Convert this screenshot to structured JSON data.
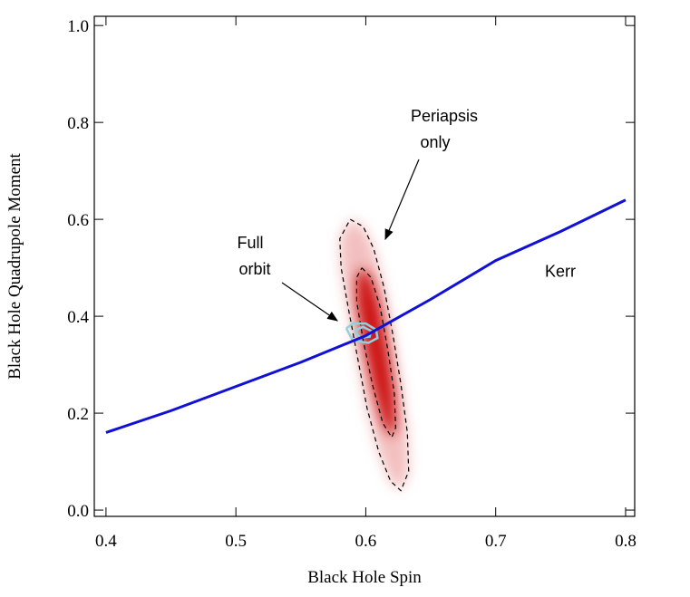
{
  "chart_data": {
    "type": "line",
    "xlabel": "Black Hole Spin",
    "ylabel": "Black Hole Quadrupole Moment",
    "xlim": [
      0.391,
      0.807
    ],
    "ylim": [
      -0.013,
      1.019
    ],
    "xticks": [
      0.4,
      0.5,
      0.6,
      0.7,
      0.8
    ],
    "yticks": [
      {
        "value": 0,
        "label": "0.0"
      },
      0.2,
      0.4,
      0.6,
      0.8,
      {
        "value": 1,
        "label": "1.0"
      }
    ],
    "series": [
      {
        "name": "Kerr",
        "color": "#1010d8",
        "x": [
          0.4,
          0.45,
          0.5,
          0.55,
          0.6,
          0.65,
          0.7,
          0.75,
          0.8
        ],
        "values": [
          0.16,
          0.205,
          0.255,
          0.305,
          0.36,
          0.435,
          0.515,
          0.575,
          0.64
        ]
      }
    ],
    "contours": [
      {
        "style": "dashed",
        "color": "#000000",
        "fill": "#f2b8b8",
        "x": [
          0.588,
          0.598,
          0.606,
          0.614,
          0.621,
          0.627,
          0.632,
          0.633,
          0.627,
          0.619,
          0.61,
          0.601,
          0.594,
          0.587,
          0.581,
          0.58,
          0.588
        ],
        "y": [
          0.6,
          0.585,
          0.54,
          0.46,
          0.36,
          0.26,
          0.16,
          0.08,
          0.04,
          0.06,
          0.12,
          0.21,
          0.31,
          0.41,
          0.5,
          0.56,
          0.6
        ]
      },
      {
        "style": "dashed",
        "color": "#000000",
        "fill": "#c80000",
        "x": [
          0.597,
          0.604,
          0.611,
          0.617,
          0.622,
          0.623,
          0.62,
          0.613,
          0.605,
          0.598,
          0.593,
          0.593,
          0.597
        ],
        "y": [
          0.5,
          0.48,
          0.42,
          0.33,
          0.24,
          0.17,
          0.15,
          0.18,
          0.26,
          0.35,
          0.43,
          0.48,
          0.5
        ]
      },
      {
        "style": "solid",
        "color": "#8fd3e0",
        "x": [
          0.585,
          0.59,
          0.6,
          0.608,
          0.609,
          0.602,
          0.59,
          0.585
        ],
        "y": [
          0.375,
          0.385,
          0.385,
          0.372,
          0.355,
          0.345,
          0.35,
          0.375
        ]
      },
      {
        "style": "solid",
        "color": "#8fd3e0",
        "x": [
          0.592,
          0.598,
          0.604,
          0.603,
          0.596,
          0.592,
          0.592
        ],
        "y": [
          0.372,
          0.378,
          0.37,
          0.358,
          0.356,
          0.365,
          0.372
        ]
      }
    ],
    "annotations": [
      "Periapsis",
      "only",
      "Full",
      "orbit"
    ]
  }
}
